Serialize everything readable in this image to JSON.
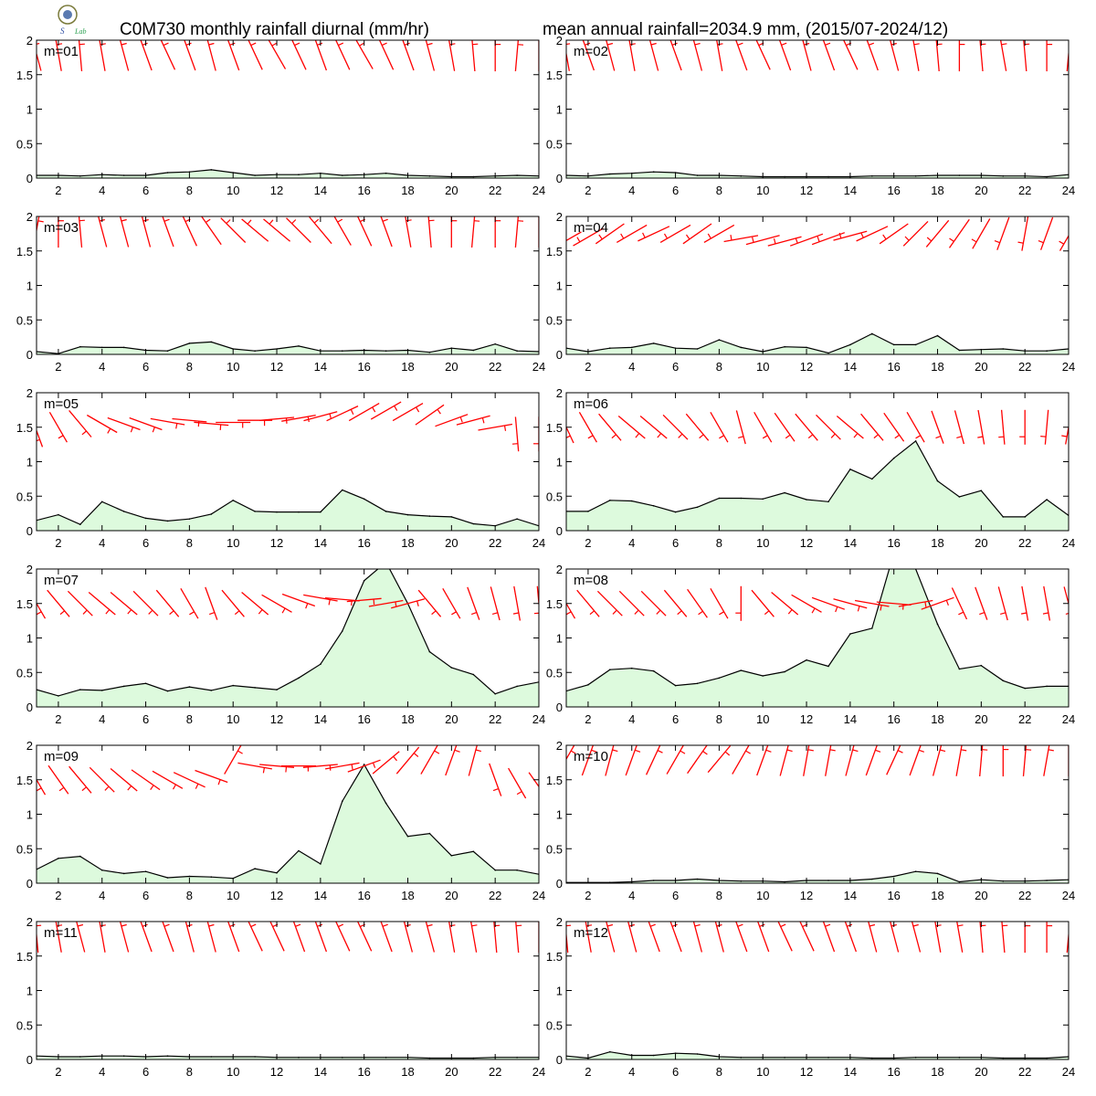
{
  "title_left": "C0M730 monthly rainfall diurnal (mm/hr)",
  "title_right": "mean annual rainfall=2034.9 mm, (2015/07-2024/12)",
  "logo": {
    "icon": "weather-bureau-seal-icon",
    "text": "Lab"
  },
  "colors": {
    "fill": "#ddfadd",
    "line": "#000000",
    "wind": "#ff0000",
    "frame": "#000000"
  },
  "chart_data": {
    "type": "area",
    "layout": "6x2-panels",
    "x": [
      1,
      2,
      3,
      4,
      5,
      6,
      7,
      8,
      9,
      10,
      11,
      12,
      13,
      14,
      15,
      16,
      17,
      18,
      19,
      20,
      21,
      22,
      23,
      24
    ],
    "xticks": [
      "2",
      "4",
      "6",
      "8",
      "10",
      "12",
      "14",
      "16",
      "18",
      "20",
      "22",
      "24"
    ],
    "xlim": [
      1,
      24
    ],
    "ylim": [
      0,
      2
    ],
    "yticks": [
      "0",
      "0.5",
      "1",
      "1.5",
      "2"
    ],
    "grid": false,
    "panels": [
      {
        "label": "m=01",
        "values": [
          0.04,
          0.04,
          0.03,
          0.05,
          0.04,
          0.04,
          0.08,
          0.09,
          0.12,
          0.08,
          0.04,
          0.05,
          0.05,
          0.07,
          0.04,
          0.05,
          0.07,
          0.04,
          0.03,
          0.02,
          0.02,
          0.03,
          0.04,
          0.03
        ],
        "wind_dir": [
          345,
          350,
          355,
          350,
          345,
          340,
          335,
          340,
          345,
          340,
          335,
          330,
          335,
          340,
          335,
          330,
          335,
          340,
          345,
          350,
          355,
          0,
          5,
          0
        ],
        "wind_y": 1.8
      },
      {
        "label": "m=02",
        "values": [
          0.04,
          0.03,
          0.06,
          0.07,
          0.09,
          0.08,
          0.04,
          0.04,
          0.03,
          0.02,
          0.02,
          0.02,
          0.02,
          0.02,
          0.03,
          0.03,
          0.03,
          0.04,
          0.04,
          0.04,
          0.03,
          0.03,
          0.02,
          0.05
        ],
        "wind_dir": [
          350,
          340,
          345,
          350,
          345,
          340,
          345,
          350,
          340,
          335,
          340,
          345,
          340,
          335,
          340,
          345,
          350,
          355,
          0,
          355,
          350,
          355,
          0,
          5
        ],
        "wind_y": 1.8
      },
      {
        "label": "m=03",
        "values": [
          0.04,
          0.01,
          0.11,
          0.1,
          0.1,
          0.06,
          0.05,
          0.16,
          0.18,
          0.08,
          0.05,
          0.08,
          0.12,
          0.05,
          0.05,
          0.06,
          0.05,
          0.06,
          0.03,
          0.09,
          0.06,
          0.15,
          0.05,
          0.04
        ],
        "wind_dir": [
          10,
          0,
          355,
          345,
          345,
          345,
          340,
          335,
          325,
          315,
          310,
          310,
          315,
          320,
          330,
          335,
          340,
          350,
          355,
          0,
          5,
          0,
          5,
          0
        ],
        "wind_y": 1.8
      },
      {
        "label": "m=04",
        "values": [
          0.09,
          0.04,
          0.09,
          0.1,
          0.16,
          0.09,
          0.08,
          0.21,
          0.1,
          0.04,
          0.11,
          0.1,
          0.02,
          0.14,
          0.3,
          0.14,
          0.14,
          0.27,
          0.06,
          0.07,
          0.08,
          0.05,
          0.05,
          0.08
        ],
        "wind_dir": [
          240,
          240,
          235,
          240,
          245,
          240,
          235,
          240,
          260,
          255,
          255,
          250,
          250,
          255,
          245,
          235,
          225,
          220,
          215,
          210,
          200,
          190,
          200,
          210
        ],
        "wind_y": [
          1.65,
          1.7,
          1.75,
          1.75,
          1.75,
          1.75,
          1.75,
          1.75,
          1.68,
          1.66,
          1.64,
          1.66,
          1.68,
          1.72,
          1.75,
          1.75,
          1.75,
          1.75,
          1.75,
          1.75,
          1.75,
          1.75,
          1.75,
          1.72
        ]
      },
      {
        "label": "m=05",
        "values": [
          0.15,
          0.23,
          0.09,
          0.42,
          0.28,
          0.18,
          0.14,
          0.17,
          0.24,
          0.44,
          0.28,
          0.27,
          0.27,
          0.27,
          0.59,
          0.46,
          0.28,
          0.23,
          0.21,
          0.2,
          0.1,
          0.07,
          0.17,
          0.07
        ],
        "wind_dir": [
          160,
          150,
          140,
          120,
          110,
          110,
          100,
          95,
          95,
          90,
          90,
          85,
          80,
          75,
          65,
          60,
          60,
          60,
          55,
          70,
          75,
          80,
          175,
          180
        ],
        "wind_y": [
          1.45,
          1.5,
          1.55,
          1.55,
          1.55,
          1.55,
          1.58,
          1.6,
          1.55,
          1.57,
          1.6,
          1.62,
          1.63,
          1.66,
          1.7,
          1.72,
          1.74,
          1.72,
          1.68,
          1.6,
          1.6,
          1.5,
          1.4,
          1.4
        ]
      },
      {
        "label": "m=06",
        "values": [
          0.28,
          0.28,
          0.44,
          0.43,
          0.36,
          0.27,
          0.34,
          0.47,
          0.47,
          0.46,
          0.55,
          0.45,
          0.42,
          0.89,
          0.75,
          1.05,
          1.3,
          0.72,
          0.49,
          0.58,
          0.2,
          0.2,
          0.45,
          0.22
        ],
        "wind_dir": [
          155,
          150,
          140,
          130,
          130,
          135,
          140,
          150,
          165,
          150,
          145,
          140,
          135,
          130,
          140,
          145,
          150,
          160,
          165,
          170,
          175,
          180,
          185,
          190
        ],
        "wind_y": 1.5
      },
      {
        "label": "m=07",
        "values": [
          0.25,
          0.16,
          0.25,
          0.24,
          0.3,
          0.34,
          0.23,
          0.29,
          0.24,
          0.31,
          0.28,
          0.25,
          0.42,
          0.62,
          1.1,
          1.83,
          2.1,
          1.5,
          0.8,
          0.57,
          0.47,
          0.19,
          0.3,
          0.36
        ],
        "wind_dir": [
          150,
          140,
          135,
          130,
          130,
          135,
          140,
          150,
          160,
          140,
          130,
          120,
          110,
          100,
          95,
          85,
          80,
          75,
          140,
          150,
          160,
          165,
          170,
          175
        ],
        "wind_y": [
          1.5,
          1.5,
          1.5,
          1.5,
          1.5,
          1.5,
          1.5,
          1.5,
          1.5,
          1.5,
          1.5,
          1.5,
          1.55,
          1.58,
          1.56,
          1.55,
          1.5,
          1.5,
          1.5,
          1.5,
          1.5,
          1.5,
          1.5,
          1.5
        ]
      },
      {
        "label": "m=08",
        "values": [
          0.23,
          0.32,
          0.54,
          0.56,
          0.52,
          0.31,
          0.34,
          0.42,
          0.53,
          0.45,
          0.51,
          0.68,
          0.59,
          1.06,
          1.14,
          2.23,
          2.0,
          1.2,
          0.55,
          0.6,
          0.38,
          0.27,
          0.3,
          0.3
        ],
        "wind_dir": [
          150,
          140,
          135,
          135,
          135,
          140,
          145,
          150,
          180,
          140,
          130,
          120,
          110,
          105,
          100,
          95,
          80,
          70,
          155,
          160,
          165,
          170,
          170,
          165
        ],
        "wind_y": 1.5
      },
      {
        "label": "m=09",
        "values": [
          0.2,
          0.36,
          0.39,
          0.19,
          0.14,
          0.17,
          0.08,
          0.1,
          0.09,
          0.07,
          0.21,
          0.15,
          0.47,
          0.28,
          1.19,
          1.72,
          1.16,
          0.68,
          0.72,
          0.4,
          0.46,
          0.19,
          0.19,
          0.13
        ],
        "wind_dir": [
          150,
          145,
          140,
          135,
          130,
          125,
          120,
          115,
          110,
          30,
          100,
          95,
          90,
          85,
          80,
          70,
          50,
          40,
          30,
          20,
          15,
          160,
          150,
          145
        ],
        "wind_y": [
          1.5,
          1.5,
          1.5,
          1.5,
          1.5,
          1.5,
          1.5,
          1.5,
          1.55,
          1.8,
          1.7,
          1.7,
          1.7,
          1.7,
          1.7,
          1.7,
          1.75,
          1.78,
          1.8,
          1.8,
          1.8,
          1.5,
          1.45,
          1.4
        ]
      },
      {
        "label": "m=10",
        "values": [
          0.01,
          0.01,
          0.01,
          0.02,
          0.04,
          0.04,
          0.06,
          0.04,
          0.03,
          0.03,
          0.02,
          0.04,
          0.04,
          0.04,
          0.06,
          0.1,
          0.17,
          0.14,
          0.02,
          0.05,
          0.03,
          0.03,
          0.04,
          0.05
        ],
        "wind_dir": [
          30,
          20,
          15,
          20,
          25,
          30,
          35,
          40,
          30,
          20,
          15,
          10,
          10,
          15,
          20,
          25,
          20,
          15,
          10,
          5,
          0,
          5,
          10,
          0
        ],
        "wind_y": 1.8
      },
      {
        "label": "m=11",
        "values": [
          0.05,
          0.04,
          0.04,
          0.05,
          0.05,
          0.04,
          0.05,
          0.04,
          0.04,
          0.04,
          0.04,
          0.03,
          0.03,
          0.03,
          0.03,
          0.03,
          0.03,
          0.03,
          0.02,
          0.02,
          0.02,
          0.03,
          0.03,
          0.03
        ],
        "wind_dir": [
          355,
          350,
          345,
          350,
          345,
          340,
          340,
          345,
          345,
          340,
          335,
          335,
          340,
          340,
          335,
          335,
          340,
          345,
          345,
          350,
          350,
          355,
          355,
          0
        ],
        "wind_y": 1.8
      },
      {
        "label": "m=12",
        "values": [
          0.05,
          0.02,
          0.11,
          0.06,
          0.06,
          0.09,
          0.08,
          0.04,
          0.03,
          0.03,
          0.03,
          0.03,
          0.03,
          0.03,
          0.02,
          0.02,
          0.03,
          0.03,
          0.03,
          0.03,
          0.02,
          0.02,
          0.02,
          0.04
        ],
        "wind_dir": [
          355,
          350,
          345,
          345,
          340,
          340,
          345,
          345,
          340,
          340,
          335,
          335,
          340,
          340,
          345,
          345,
          345,
          350,
          350,
          355,
          355,
          0,
          0,
          5
        ],
        "wind_y": 1.8
      }
    ]
  }
}
